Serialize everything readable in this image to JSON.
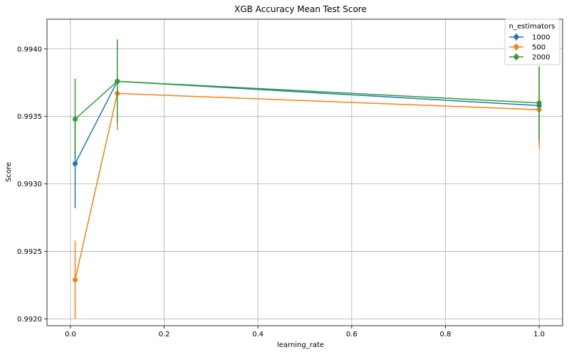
{
  "chart_data": {
    "type": "line",
    "title": "XGB Accuracy Mean Test Score",
    "xlabel": "learning_rate",
    "ylabel": "Score",
    "xlim": [
      -0.05,
      1.05
    ],
    "ylim": [
      0.99195,
      0.99422
    ],
    "xticks": [
      0.0,
      0.2,
      0.4,
      0.6,
      0.8,
      1.0
    ],
    "xtick_labels": [
      "0.0",
      "0.2",
      "0.4",
      "0.6",
      "0.8",
      "1.0"
    ],
    "yticks": [
      0.992,
      0.9925,
      0.993,
      0.9935,
      0.994
    ],
    "ytick_labels": [
      "0.9920",
      "0.9925",
      "0.9930",
      "0.9935",
      "0.9940"
    ],
    "grid": true,
    "legend": {
      "title": "n_estimators",
      "position": "top-right"
    },
    "x": [
      0.01,
      0.1,
      1.0
    ],
    "series": [
      {
        "name": "1000",
        "color": "#1f77b4",
        "values": [
          0.99315,
          0.99376,
          0.99358
        ],
        "errors": [
          0.00033,
          0.00031,
          0.00028
        ]
      },
      {
        "name": "500",
        "color": "#ff7f0e",
        "values": [
          0.99229,
          0.99367,
          0.99355
        ],
        "errors": [
          0.00029,
          0.00027,
          0.00029
        ]
      },
      {
        "name": "2000",
        "color": "#2ca02c",
        "values": [
          0.99348,
          0.99376,
          0.9936
        ],
        "errors": [
          0.0003,
          0.00031,
          0.00027
        ]
      }
    ]
  }
}
